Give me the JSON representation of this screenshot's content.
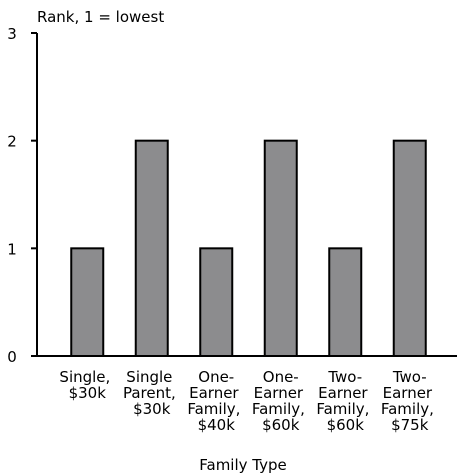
{
  "chart_data": {
    "type": "bar",
    "y_label": "Rank, 1 = lowest",
    "x_label": "Family Type",
    "categories": [
      "Single, $30k",
      "Single Parent, $30k",
      "One-Earner Family, $40k",
      "One-Earner Family, $60k",
      "Two-Earner Family, $60k",
      "Two-Earner Family, $75k"
    ],
    "values": [
      1,
      2,
      1,
      2,
      1,
      2
    ],
    "color": "#8c8c8e",
    "ylim": [
      0,
      3
    ],
    "yticks": [
      0,
      1,
      2,
      3
    ],
    "grid": false
  }
}
